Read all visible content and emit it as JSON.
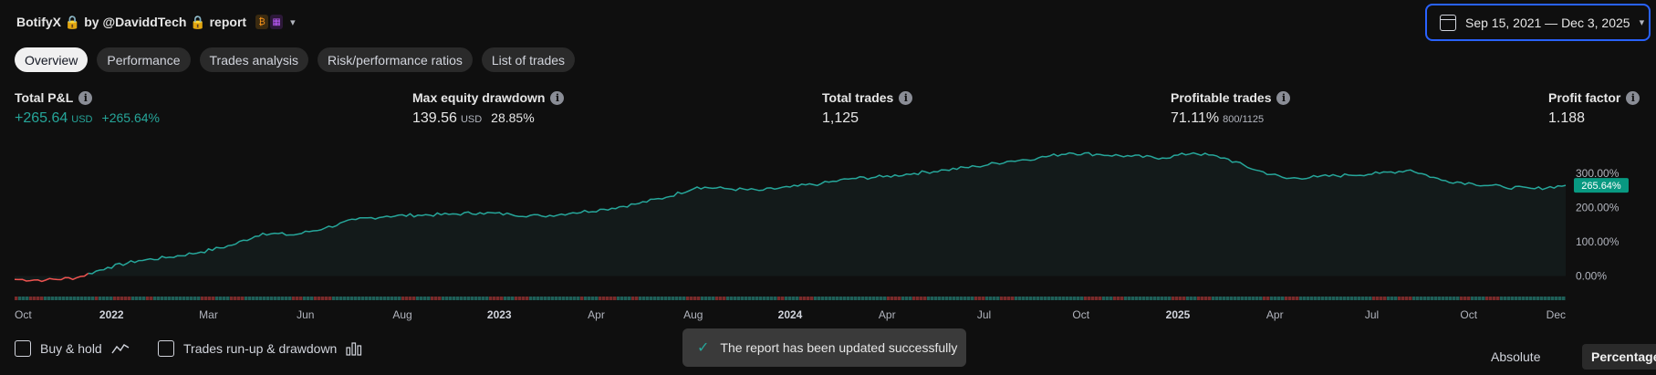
{
  "header": {
    "title": "BotifyX 🔒 by @DaviddTech 🔒 report",
    "icons": [
      "bitcoin-icon",
      "calendar-icon"
    ]
  },
  "date_range": {
    "label": "Sep 15, 2021 — Dec 3, 2025"
  },
  "tabs": [
    {
      "label": "Overview",
      "active": true
    },
    {
      "label": "Performance"
    },
    {
      "label": "Trades analysis"
    },
    {
      "label": "Risk/performance ratios"
    },
    {
      "label": "List of trades"
    }
  ],
  "stats": {
    "total_pnl": {
      "label": "Total P&L",
      "value": "+265.64",
      "unit": "USD",
      "percent": "+265.64%"
    },
    "max_drawdown": {
      "label": "Max equity drawdown",
      "value": "139.56",
      "unit": "USD",
      "percent": "28.85%"
    },
    "total_trades": {
      "label": "Total trades",
      "value": "1,125"
    },
    "profitable_trades": {
      "label": "Profitable trades",
      "value": "71.11%",
      "ratio": "800/1125"
    },
    "profit_factor": {
      "label": "Profit factor",
      "value": "1.188"
    }
  },
  "chart_data": {
    "type": "area",
    "series": [
      {
        "x": [
          "2021-10",
          "2021-11",
          "2021-12",
          "2022-01",
          "2022-02",
          "2022-03",
          "2022-04",
          "2022-05",
          "2022-06",
          "2022-07",
          "2022-08",
          "2022-09",
          "2022-10",
          "2022-11",
          "2022-12",
          "2023-01",
          "2023-02",
          "2023-03",
          "2023-04",
          "2023-05",
          "2023-06",
          "2023-07",
          "2023-08",
          "2023-09",
          "2023-10",
          "2023-11",
          "2023-12",
          "2024-01",
          "2024-02",
          "2024-03",
          "2024-04",
          "2024-05",
          "2024-06",
          "2024-07",
          "2024-08",
          "2024-09",
          "2024-10",
          "2024-11",
          "2024-12",
          "2025-01",
          "2025-02",
          "2025-03",
          "2025-04",
          "2025-05",
          "2025-06",
          "2025-07",
          "2025-08",
          "2025-09",
          "2025-10",
          "2025-11",
          "2025-12"
        ],
        "values": [
          -10,
          -12,
          -5,
          25,
          45,
          55,
          70,
          90,
          125,
          120,
          140,
          165,
          175,
          178,
          180,
          185,
          180,
          175,
          185,
          195,
          210,
          230,
          260,
          255,
          250,
          260,
          270,
          285,
          290,
          300,
          310,
          320,
          335,
          345,
          360,
          355,
          350,
          345,
          360,
          345,
          310,
          285,
          290,
          295,
          300,
          310,
          280,
          270,
          260,
          255,
          265
        ]
      }
    ],
    "x_tick_labels": [
      {
        "label": "Oct",
        "bold": false
      },
      {
        "label": "2022",
        "bold": true
      },
      {
        "label": "Mar",
        "bold": false
      },
      {
        "label": "Jun",
        "bold": false
      },
      {
        "label": "Aug",
        "bold": false
      },
      {
        "label": "2023",
        "bold": true
      },
      {
        "label": "Apr",
        "bold": false
      },
      {
        "label": "Aug",
        "bold": false
      },
      {
        "label": "2024",
        "bold": true
      },
      {
        "label": "Apr",
        "bold": false
      },
      {
        "label": "Jul",
        "bold": false
      },
      {
        "label": "Oct",
        "bold": false
      },
      {
        "label": "2025",
        "bold": true
      },
      {
        "label": "Apr",
        "bold": false
      },
      {
        "label": "Jul",
        "bold": false
      },
      {
        "label": "Oct",
        "bold": false
      },
      {
        "label": "Dec",
        "bold": false
      }
    ],
    "y_ticks": [
      {
        "value": 0,
        "label": "0.00%"
      },
      {
        "value": 100,
        "label": "100.00%"
      },
      {
        "value": 200,
        "label": "200.00%"
      },
      {
        "value": 300,
        "label": "300.00%"
      }
    ],
    "ylim": [
      -20,
      380
    ],
    "last_value_label": "265.64%",
    "colors": {
      "up": "#26a69a",
      "down": "#ef5350",
      "fill": "#131a1a",
      "badge": "#089981"
    }
  },
  "footer": {
    "buy_hold": "Buy & hold",
    "runup_drawdown": "Trades run-up & drawdown",
    "absolute": "Absolute",
    "percentage": "Percentage"
  },
  "toast": {
    "message": "The report has been updated successfully"
  }
}
